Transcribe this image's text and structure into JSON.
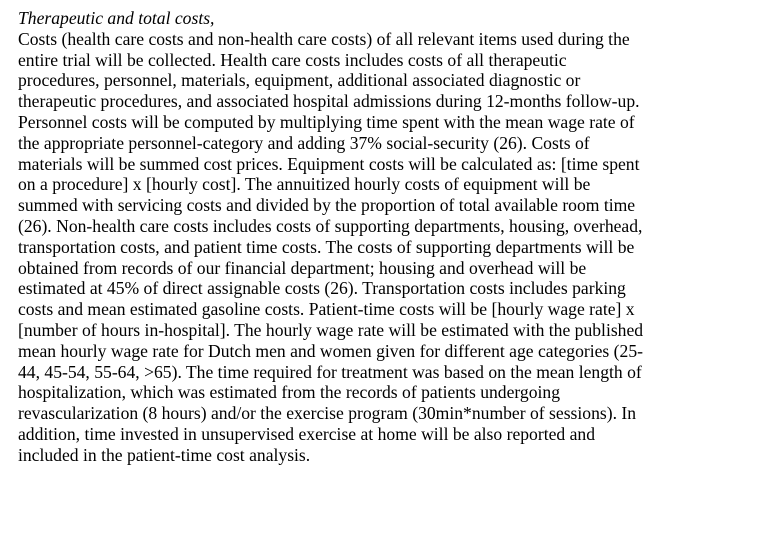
{
  "section": {
    "heading": "Therapeutic and total costs,",
    "lines": [
      "Costs (health care costs and non-health care costs) of all relevant items used during the",
      "entire trial will be collected. Health care costs includes costs of all therapeutic",
      "procedures, personnel, materials, equipment, additional associated diagnostic or",
      "therapeutic procedures, and associated hospital admissions during 12-months follow-up.",
      "Personnel costs will be computed by multiplying time spent with the mean wage rate of",
      "the appropriate personnel-category and adding 37% social-security (26). Costs of",
      "materials will be summed cost prices. Equipment costs will be calculated as: [time spent",
      "on a procedure] x [hourly cost]. The annuitized hourly costs of equipment will be",
      "summed with servicing costs and divided by the proportion of total available room time",
      "(26). Non-health care costs includes costs of supporting departments, housing, overhead,",
      "transportation costs, and patient time costs. The costs of supporting departments will be",
      "obtained from records of our financial department; housing and overhead will be",
      "estimated at 45% of direct assignable costs (26). Transportation costs includes parking",
      "costs and mean estimated gasoline costs. Patient-time costs will be [hourly wage rate] x",
      "[number of hours in-hospital]. The hourly wage rate will be estimated with the published",
      "mean hourly wage rate for Dutch men and women given for different age categories (25-",
      "44, 45-54, 55-64, >65). The time required for treatment was based on the mean length of",
      "hospitalization, which was estimated from the records of patients undergoing",
      "revascularization (8 hours) and/or the exercise program (30min*number of sessions). In",
      "addition, time invested in unsupervised exercise at home will be also reported and",
      "included in the patient-time cost analysis."
    ]
  }
}
